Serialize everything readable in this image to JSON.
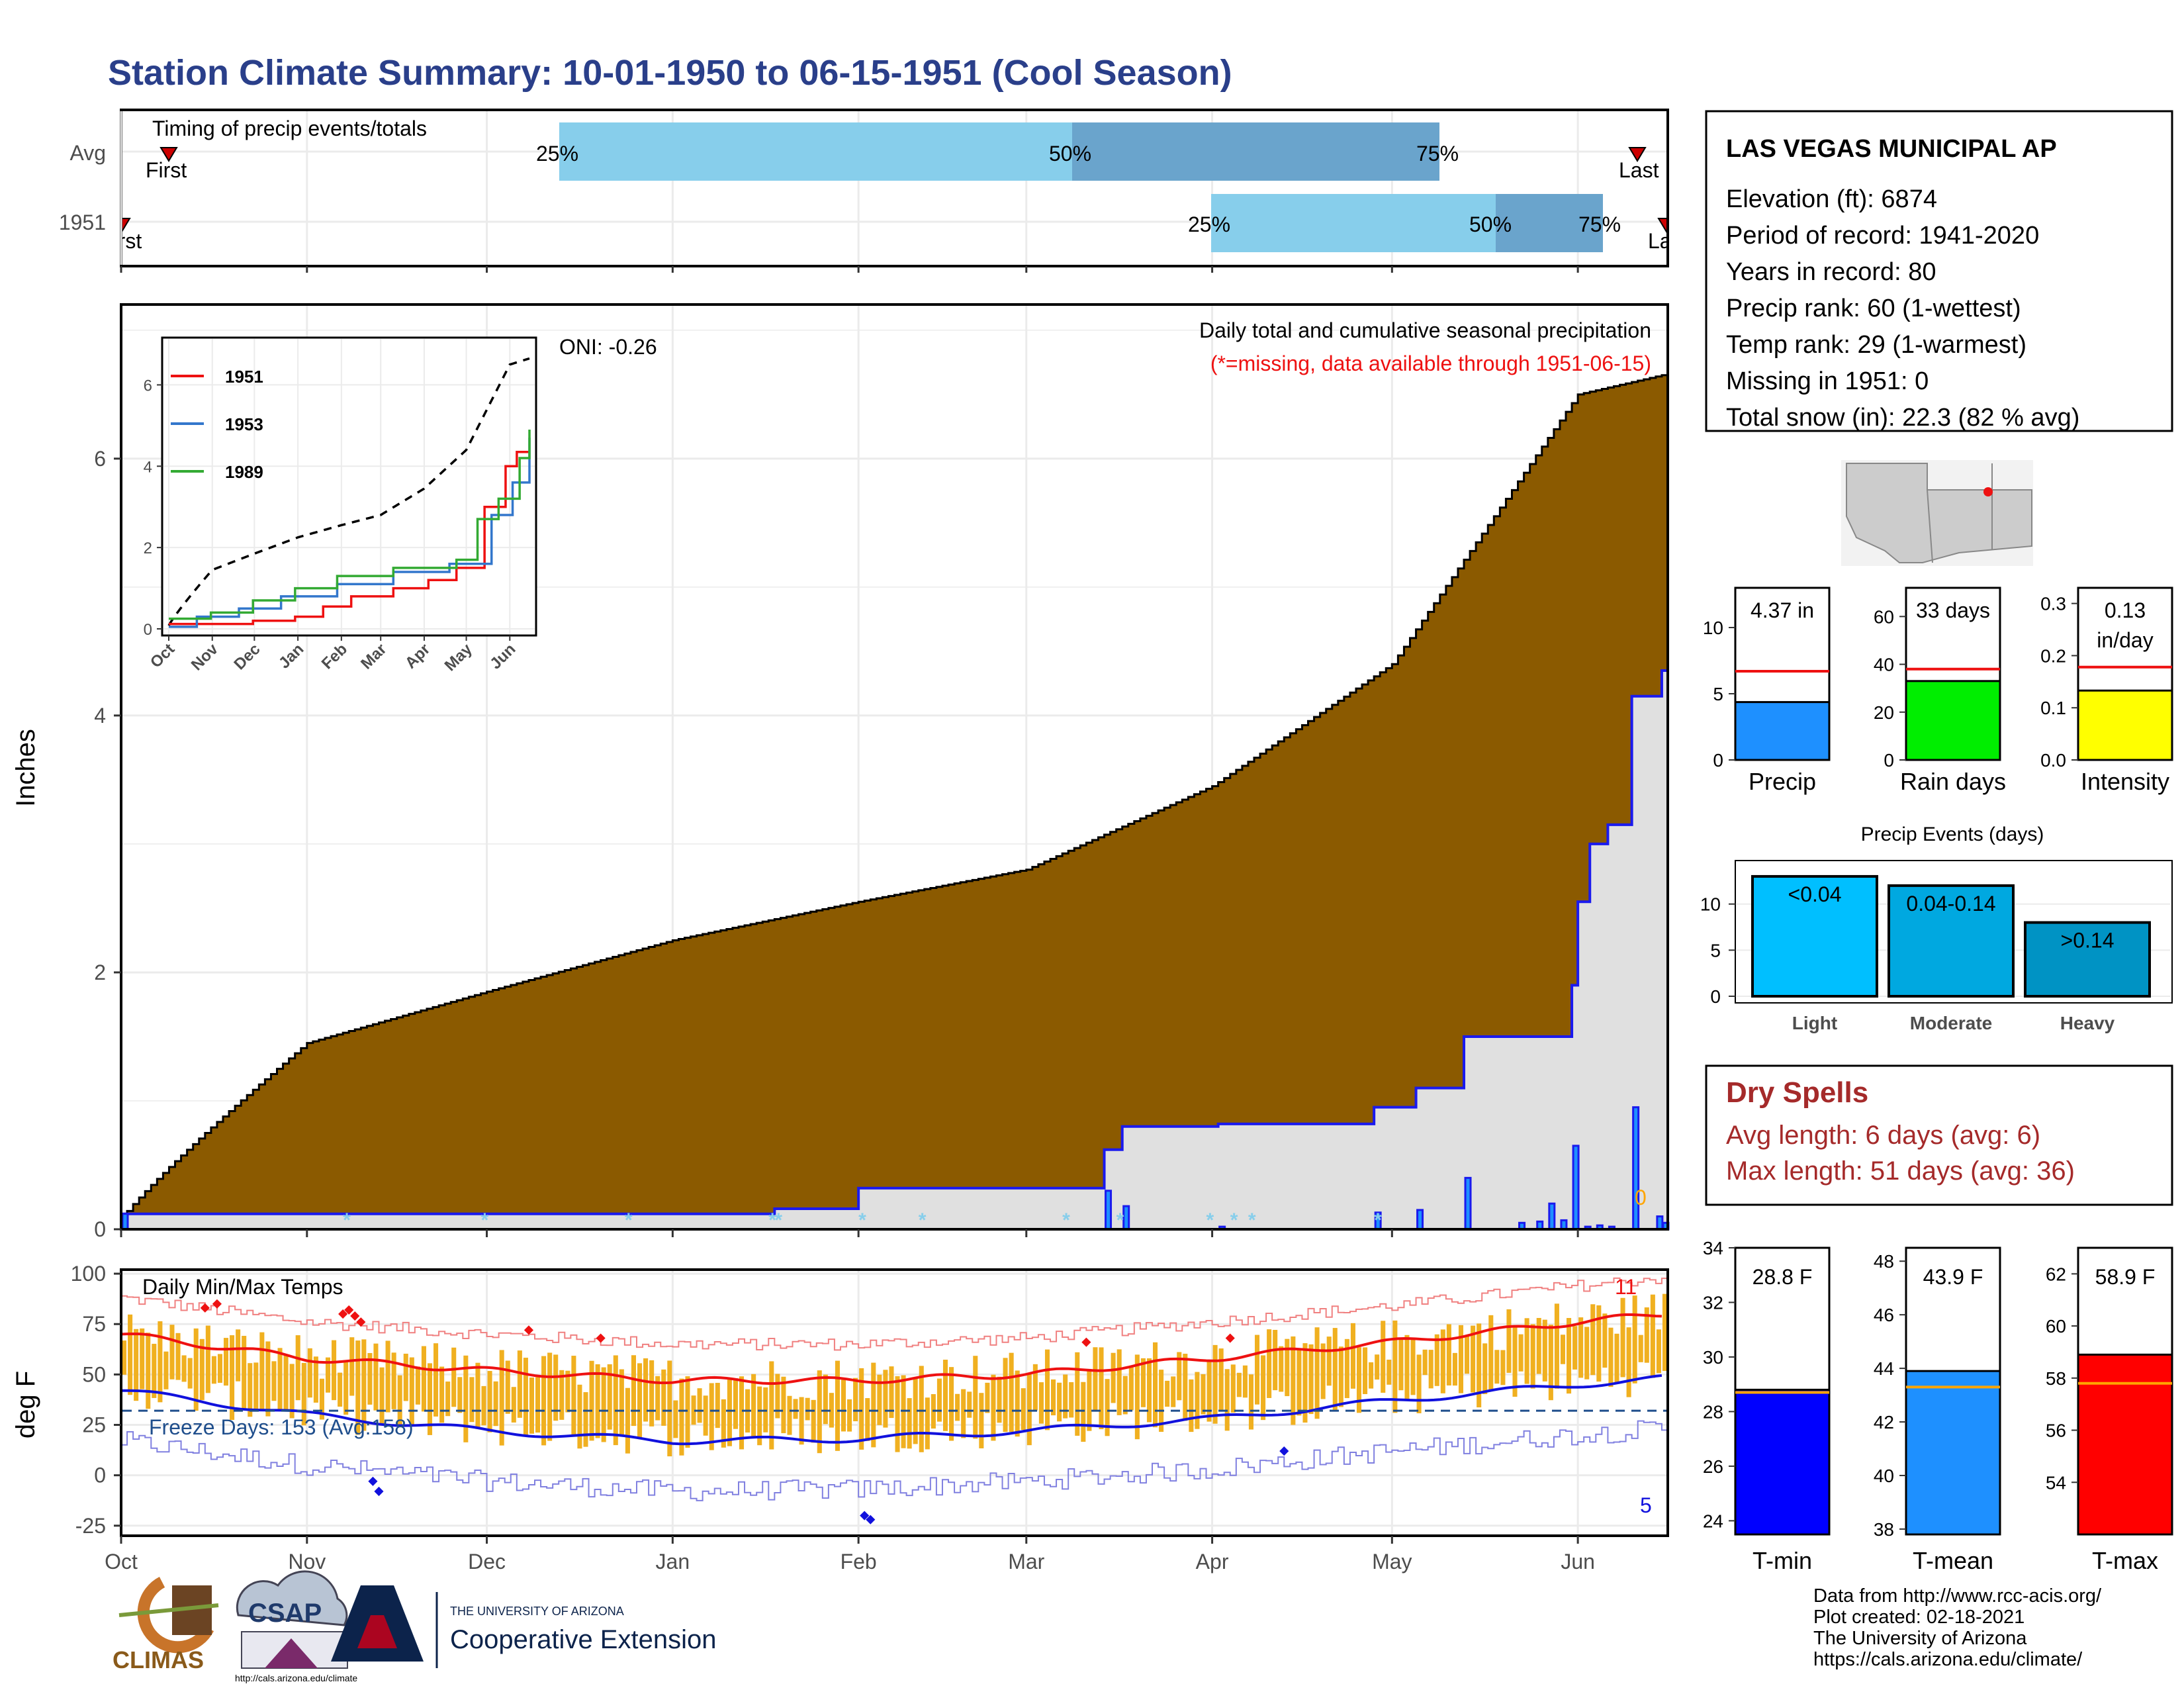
{
  "header": {
    "title": "Station Climate Summary: 10-01-1950 to 06-15-1951 (Cool Season)"
  },
  "colors": {
    "title": "#2a3f8a",
    "cumFill": "#8b5a00",
    "avgArea": "#e0e0e0",
    "blueLine": "#1a1aee",
    "bar25": "#87ceeb",
    "bar50": "#6aa4cc",
    "tempBar": "#f0b020",
    "red": "#ee1111",
    "blue": "#1111dd",
    "dryRed": "#a52a2a"
  },
  "timing": {
    "label": "Timing of precip events/totals",
    "rows": [
      {
        "label": "Avg",
        "first": "First",
        "last": "Last",
        "p25": "25%",
        "p50": "50%",
        "p75": "75%"
      },
      {
        "label": "1951",
        "first": "First",
        "last": "Last",
        "p25": "25%",
        "p50": "50%",
        "p75": "75%"
      }
    ]
  },
  "precip_panel": {
    "ylabel": "Inches",
    "caption": "Daily total and cumulative seasonal precipitation",
    "missing_note": "(*=missing, data available through 1951-06-15)",
    "oni": "ONI: -0.26",
    "zero_count": "0",
    "y_ticks": [
      "0",
      "2",
      "4",
      "6"
    ]
  },
  "inset": {
    "y_ticks": [
      "0",
      "2",
      "4",
      "6"
    ],
    "months": [
      "Oct",
      "Nov",
      "Dec",
      "Jan",
      "Feb",
      "Mar",
      "Apr",
      "May",
      "Jun"
    ],
    "legend": [
      {
        "name": "1951",
        "color": "#ee1111"
      },
      {
        "name": "1953",
        "color": "#3377cc"
      },
      {
        "name": "1989",
        "color": "#33aa33"
      }
    ]
  },
  "temp_panel": {
    "ylabel": "deg F",
    "label": "Daily Min/Max Temps",
    "freeze": "Freeze Days: 153 (Avg:158)",
    "high_count": "11",
    "low_count": "5",
    "y_ticks": [
      "-25",
      "0",
      "25",
      "50",
      "75",
      "100"
    ]
  },
  "x_months": [
    "Oct",
    "Nov",
    "Dec",
    "Jan",
    "Feb",
    "Mar",
    "Apr",
    "May",
    "Jun"
  ],
  "station": {
    "name": "LAS VEGAS MUNICIPAL AP",
    "lines": [
      "Elevation (ft): 6874",
      "Period of record: 1941-2020",
      "Years in record: 80",
      "Precip rank: 60 (1-wettest)",
      "Temp rank: 29 (1-warmest)",
      "Missing in 1951: 0",
      "Total snow (in): 22.3 (82 % avg)"
    ]
  },
  "mini_bars": [
    {
      "label": "Precip",
      "value_text": "4.37 in",
      "value": 4.37,
      "avg": 6.7,
      "max": 13,
      "ticks": [
        "0",
        "5",
        "10"
      ],
      "tickvals": [
        0,
        5,
        10
      ],
      "color": "#1e90ff"
    },
    {
      "label": "Rain days",
      "value_text": "33 days",
      "value": 33,
      "avg": 38,
      "max": 72,
      "ticks": [
        "0",
        "20",
        "40",
        "60"
      ],
      "tickvals": [
        0,
        20,
        40,
        60
      ],
      "color": "#00ee00"
    },
    {
      "label": "Intensity",
      "value_text": "0.13 in/day",
      "value_text_1": "0.13",
      "value_text_2": "in/day",
      "value": 0.133,
      "avg": 0.178,
      "max": 0.33,
      "ticks": [
        "0.0",
        "0.1",
        "0.2",
        "0.3"
      ],
      "tickvals": [
        0,
        0.1,
        0.2,
        0.3
      ],
      "color": "#ffff00"
    }
  ],
  "events": {
    "title": "Precip Events (days)",
    "ticks": [
      "0",
      "5",
      "10"
    ],
    "tickvals": [
      0,
      5,
      10
    ],
    "bars": [
      {
        "name": "Light",
        "tag": "<0.04",
        "value": 13,
        "color": "#00bfff"
      },
      {
        "name": "Moderate",
        "tag": "0.04-0.14",
        "value": 12,
        "color": "#00a8e0"
      },
      {
        "name": "Heavy",
        "tag": ">0.14",
        "value": 8,
        "color": "#0093c4"
      }
    ]
  },
  "dry_spells": {
    "title": "Dry Spells",
    "avg": "Avg length: 6 days (avg: 6)",
    "max": "Max length: 51 days (avg: 36)"
  },
  "temp_bars": [
    {
      "label": "T-min",
      "value_text": "28.8 F",
      "value": 28.8,
      "avg": 28.7,
      "min": 23.5,
      "max": 34,
      "ticks": [
        "24",
        "26",
        "28",
        "30",
        "32",
        "34"
      ],
      "tickvals": [
        24,
        26,
        28,
        30,
        32,
        34
      ],
      "color": "#0000ff"
    },
    {
      "label": "T-mean",
      "value_text": "43.9 F",
      "value": 43.9,
      "avg": 43.3,
      "min": 37.8,
      "max": 48.5,
      "ticks": [
        "38",
        "40",
        "42",
        "44",
        "46",
        "48"
      ],
      "tickvals": [
        38,
        40,
        42,
        44,
        46,
        48
      ],
      "color": "#1e90ff"
    },
    {
      "label": "T-max",
      "value_text": "58.9 F",
      "value": 58.9,
      "avg": 57.8,
      "min": 52,
      "max": 63,
      "ticks": [
        "54",
        "56",
        "58",
        "60",
        "62"
      ],
      "tickvals": [
        54,
        56,
        58,
        60,
        62
      ],
      "color": "#ff0000"
    }
  ],
  "footer": {
    "lines": [
      "Data from http://www.rcc-acis.org/",
      "Plot created: 02-18-2021",
      "The University of Arizona",
      "https://cals.arizona.edu/climate/"
    ],
    "climas": "CLIMAS",
    "csap": "CSAP",
    "csap_url": "http://cals.arizona.edu/climate",
    "ua_small": "THE UNIVERSITY OF ARIZONA",
    "ua_big": "Cooperative Extension"
  },
  "chart_data": [
    {
      "type": "area",
      "title": "Daily total and cumulative seasonal precipitation",
      "ylabel": "Inches",
      "ylim": [
        0,
        7.2
      ],
      "x": [
        "Oct",
        "Nov",
        "Dec",
        "Jan",
        "Feb",
        "Mar",
        "Apr",
        "May",
        "Jun",
        "Jun"
      ],
      "series": [
        {
          "name": "Avg",
          "values": [
            0.08,
            1.45,
            1.85,
            2.25,
            2.55,
            2.8,
            3.45,
            4.4,
            6.5,
            6.65
          ]
        },
        {
          "values": [
            0.12,
            0.12,
            0.12,
            0.12,
            0.32,
            0.8,
            1.5,
            1.6,
            4.2,
            4.35
          ]
        }
      ]
    },
    {
      "type": "line",
      "ylabel": "deg F",
      "ylim": [
        -30,
        102
      ],
      "x": [
        "Oct",
        "Nov",
        "Dec",
        "Jan",
        "Feb",
        "Mar",
        "Apr",
        "May",
        "Jun",
        "Jun"
      ],
      "series": [
        {
          "values": [
            70,
            58,
            52,
            47,
            47,
            50,
            58,
            66,
            76,
            80
          ]
        },
        {
          "values": [
            42,
            30,
            22,
            17,
            18,
            22,
            28,
            37,
            45,
            48
          ]
        }
      ]
    }
  ]
}
